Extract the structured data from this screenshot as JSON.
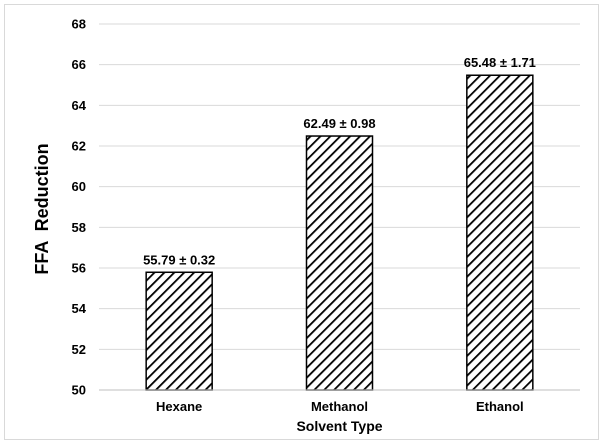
{
  "chart_data": {
    "type": "bar",
    "title": "",
    "xlabel": "Solvent Type",
    "ylabel": "FFA  Reduction",
    "categories": [
      "Hexane",
      "Methanol",
      "Ethanol"
    ],
    "values": [
      55.79,
      62.49,
      65.48
    ],
    "data_labels": [
      "55.79 ± 0.32",
      "62.49 ± 0.98",
      "65.48 ± 1.71"
    ],
    "ylim": [
      50,
      68
    ],
    "yticks": [
      50,
      52,
      54,
      56,
      58,
      60,
      62,
      64,
      66,
      68
    ],
    "y_tick_labels": [
      "50",
      "52",
      "54",
      "56",
      "58",
      "60",
      "62",
      "64",
      "66",
      "68"
    ],
    "grid": "horizontal",
    "legend": "none",
    "bar_fill": "diagonal-hatch",
    "colors": {
      "bar_stroke": "#000000",
      "hatch": "#000000",
      "grid": "#d9d9d9",
      "axis": "#bfbfbf"
    }
  }
}
